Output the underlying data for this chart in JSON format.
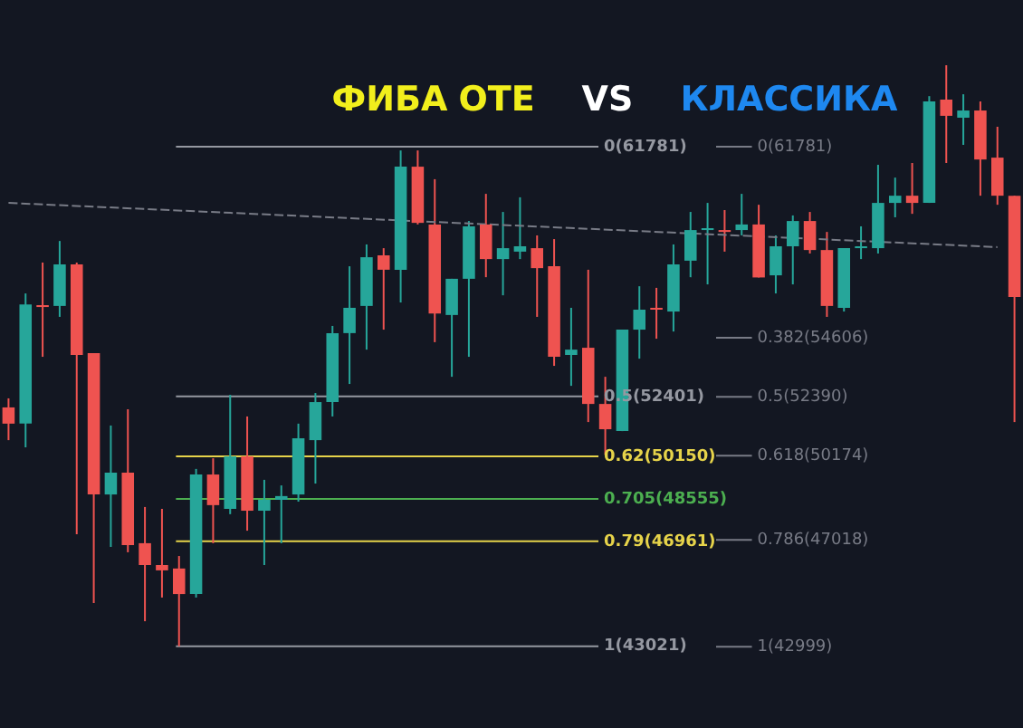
{
  "chart_data": {
    "type": "candlestick",
    "title": "ФИБА ОТЕ VS КЛАССИКА",
    "categories": [
      null,
      null,
      null,
      null,
      null,
      null,
      null,
      null,
      null,
      null,
      null,
      null,
      null,
      null,
      null,
      null,
      null,
      null,
      null,
      null,
      null,
      null,
      null,
      null,
      null,
      null,
      null,
      null,
      null,
      null,
      null,
      null,
      null,
      null,
      null,
      null,
      null,
      null,
      null,
      null,
      null,
      null,
      null,
      null,
      null,
      null,
      null,
      null,
      null,
      null,
      null,
      null,
      null,
      null,
      null,
      null,
      null,
      null,
      null,
      null
    ],
    "ohlc": [
      [
        51990,
        52330,
        50760,
        51380
      ],
      [
        51380,
        56270,
        50490,
        55860
      ],
      [
        55830,
        57430,
        53890,
        55760
      ],
      [
        55800,
        58240,
        55390,
        57360
      ],
      [
        57360,
        57430,
        47230,
        53960
      ],
      [
        54030,
        54030,
        44640,
        48720
      ],
      [
        48720,
        51310,
        46750,
        49540
      ],
      [
        49540,
        51920,
        46550,
        46820
      ],
      [
        46890,
        48250,
        43960,
        46070
      ],
      [
        46070,
        48180,
        44850,
        45870
      ],
      [
        45940,
        46410,
        43021,
        44980
      ],
      [
        44980,
        49680,
        44850,
        49470
      ],
      [
        49470,
        50080,
        46890,
        48320
      ],
      [
        48180,
        52460,
        47980,
        50150
      ],
      [
        50150,
        51650,
        47360,
        48110
      ],
      [
        48110,
        49270,
        46070,
        48520
      ],
      [
        48520,
        49060,
        46890,
        48660
      ],
      [
        48720,
        51380,
        48450,
        50830
      ],
      [
        50760,
        52530,
        49130,
        52190
      ],
      [
        52190,
        55050,
        51650,
        54780
      ],
      [
        54780,
        57290,
        52870,
        55730
      ],
      [
        55800,
        58110,
        54160,
        57630
      ],
      [
        57700,
        57970,
        54910,
        57160
      ],
      [
        57160,
        61640,
        55930,
        61030
      ],
      [
        61030,
        61640,
        58860,
        58920
      ],
      [
        58860,
        60560,
        54440,
        55520
      ],
      [
        55460,
        56820,
        53140,
        56820
      ],
      [
        56820,
        58990,
        53890,
        58790
      ],
      [
        58860,
        60010,
        56880,
        57560
      ],
      [
        57560,
        59330,
        56200,
        57970
      ],
      [
        57840,
        59880,
        57560,
        58040
      ],
      [
        57970,
        58450,
        55390,
        57220
      ],
      [
        57290,
        58310,
        53550,
        53890
      ],
      [
        53960,
        55730,
        52800,
        54160
      ],
      [
        54230,
        57160,
        51440,
        52120
      ],
      [
        52120,
        53140,
        50220,
        51170
      ],
      [
        51100,
        54910,
        51100,
        54910
      ],
      [
        54910,
        56540,
        53820,
        55660
      ],
      [
        55730,
        56480,
        54570,
        55660
      ],
      [
        55590,
        58110,
        54840,
        57360
      ],
      [
        57500,
        59330,
        56880,
        58650
      ],
      [
        58650,
        59670,
        56610,
        58720
      ],
      [
        58650,
        59400,
        57840,
        58580
      ],
      [
        58650,
        60010,
        58450,
        58860
      ],
      [
        58860,
        59600,
        56870,
        56870
      ],
      [
        56950,
        58450,
        56270,
        58040
      ],
      [
        58040,
        59200,
        56610,
        58990
      ],
      [
        58990,
        59330,
        57770,
        57900
      ],
      [
        57900,
        58580,
        55390,
        55800
      ],
      [
        55730,
        57970,
        55590,
        57970
      ],
      [
        57970,
        58790,
        57560,
        58040
      ],
      [
        57970,
        61100,
        57770,
        59670
      ],
      [
        59670,
        60620,
        59130,
        59940
      ],
      [
        59940,
        61170,
        59260,
        59670
      ],
      [
        59670,
        63680,
        59670,
        63480
      ],
      [
        63550,
        64840,
        61170,
        62940
      ],
      [
        62870,
        63750,
        61850,
        63140
      ],
      [
        63140,
        63480,
        59940,
        61300
      ],
      [
        61370,
        62530,
        59600,
        59940
      ],
      [
        59940,
        59940,
        51440,
        56140
      ]
    ],
    "colors": [
      "#ef5350",
      "#26a69a",
      "#ef5350",
      "#26a69a",
      "#ef5350",
      "#ef5350",
      "#26a69a",
      "#ef5350",
      "#ef5350",
      "#ef5350",
      "#ef5350",
      "#26a69a",
      "#ef5350",
      "#26a69a",
      "#ef5350",
      "#26a69a",
      "#26a69a",
      "#26a69a",
      "#26a69a",
      "#26a69a",
      "#26a69a",
      "#26a69a",
      "#ef5350",
      "#26a69a",
      "#ef5350",
      "#ef5350",
      "#26a69a",
      "#26a69a",
      "#ef5350",
      "#26a69a",
      "#26a69a",
      "#ef5350",
      "#ef5350",
      "#26a69a",
      "#ef5350",
      "#ef5350",
      "#26a69a",
      "#26a69a",
      "#ef5350",
      "#26a69a",
      "#26a69a",
      "#26a69a",
      "#ef5350",
      "#26a69a",
      "#ef5350",
      "#26a69a",
      "#26a69a",
      "#ef5350",
      "#ef5350",
      "#26a69a",
      "#26a69a",
      "#26a69a",
      "#26a69a",
      "#ef5350",
      "#26a69a",
      "#ef5350",
      "#26a69a",
      "#ef5350",
      "#ef5350",
      "#ef5350"
    ],
    "series": [
      {
        "type": "line",
        "color": "#787b86",
        "line_style": "dashed",
        "values": [
          59670,
          null,
          null,
          null,
          null,
          null,
          null,
          null,
          null,
          null,
          null,
          null,
          null,
          null,
          null,
          null,
          null,
          null,
          null,
          null,
          null,
          null,
          null,
          null,
          null,
          null,
          null,
          null,
          null,
          null,
          null,
          null,
          null,
          null,
          null,
          null,
          null,
          null,
          null,
          null,
          null,
          null,
          null,
          null,
          null,
          null,
          null,
          null,
          null,
          null,
          null,
          null,
          null,
          null,
          null,
          null,
          null,
          null,
          58010,
          null
        ]
      }
    ],
    "ref_lines": [
      {
        "axis": "y",
        "value": 61781,
        "label": "0(61781)",
        "color": "#9598a1"
      },
      {
        "axis": "y",
        "value": 52401,
        "label": "0.5(52401)",
        "color": "#9598a1"
      },
      {
        "axis": "y",
        "value": 50150,
        "label": "0.62(50150)",
        "color": "#e6d34a"
      },
      {
        "axis": "y",
        "value": 48555,
        "label": "0.705(48555)",
        "color": "#4caf50"
      },
      {
        "axis": "y",
        "value": 46961,
        "label": "0.79(46961)",
        "color": "#e6d34a"
      },
      {
        "axis": "y",
        "value": 43021,
        "label": "1(43021)",
        "color": "#9598a1"
      },
      {
        "axis": "y",
        "value": 61781,
        "label": "0(61781)",
        "color": "#787b86"
      },
      {
        "axis": "y",
        "value": 54606,
        "label": "0.382(54606)",
        "color": "#787b86"
      },
      {
        "axis": "y",
        "value": 52390,
        "label": "0.5(52390)",
        "color": "#787b86"
      },
      {
        "axis": "y",
        "value": 50174,
        "label": "0.618(50174)",
        "color": "#787b86"
      },
      {
        "axis": "y",
        "value": 47018,
        "label": "0.786(47018)",
        "color": "#787b86"
      },
      {
        "axis": "y",
        "value": 42999,
        "label": "1(42999)",
        "color": "#787b86"
      }
    ],
    "ylim": [
      39950,
      67290
    ],
    "tick_labels": false
  }
}
